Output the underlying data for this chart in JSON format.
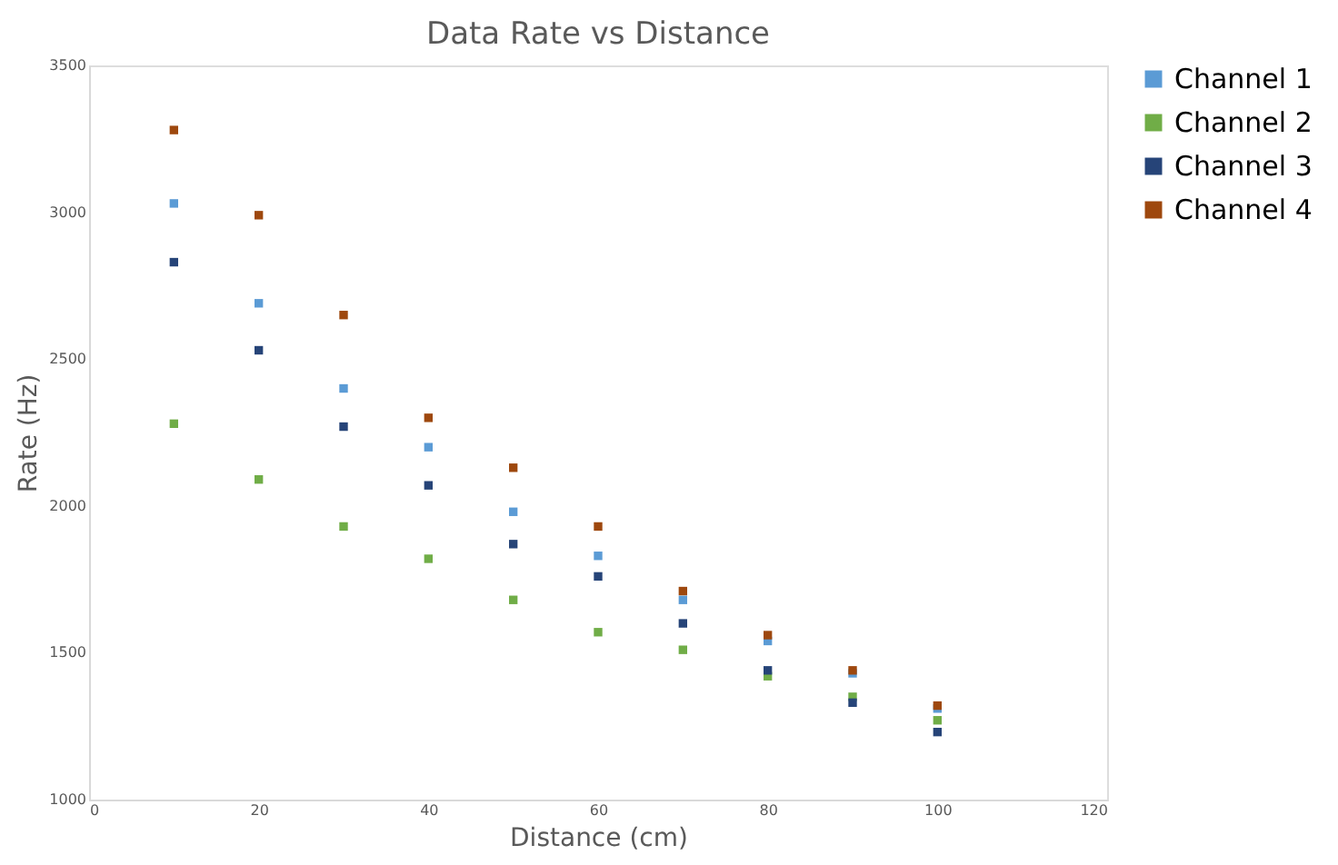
{
  "chart_data": {
    "type": "scatter",
    "title": "Data Rate vs Distance",
    "xlabel": "Distance (cm)",
    "ylabel": "Rate (Hz)",
    "x": [
      10,
      20,
      30,
      40,
      50,
      60,
      70,
      80,
      90,
      100
    ],
    "series": [
      {
        "name": "Channel 1",
        "color": "#5b9bd5",
        "values": [
          3030,
          2690,
          2400,
          2200,
          1980,
          1830,
          1680,
          1540,
          1430,
          1310
        ]
      },
      {
        "name": "Channel 2",
        "color": "#70ad47",
        "values": [
          2280,
          2090,
          1930,
          1820,
          1680,
          1570,
          1510,
          1420,
          1350,
          1270
        ]
      },
      {
        "name": "Channel 3",
        "color": "#264478",
        "values": [
          2830,
          2530,
          2270,
          2070,
          1870,
          1760,
          1600,
          1440,
          1330,
          1230
        ]
      },
      {
        "name": "Channel 4",
        "color": "#9e480e",
        "values": [
          3280,
          2990,
          2650,
          2300,
          2130,
          1930,
          1710,
          1560,
          1440,
          1320
        ]
      }
    ],
    "xlim": [
      0,
      120
    ],
    "xticks": [
      0,
      20,
      40,
      60,
      80,
      100,
      120
    ],
    "ylim": [
      1000,
      3500
    ],
    "yticks": [
      1000,
      1500,
      2000,
      2500,
      3000,
      3500
    ],
    "grid": false,
    "legend": "right",
    "marker": "square"
  }
}
